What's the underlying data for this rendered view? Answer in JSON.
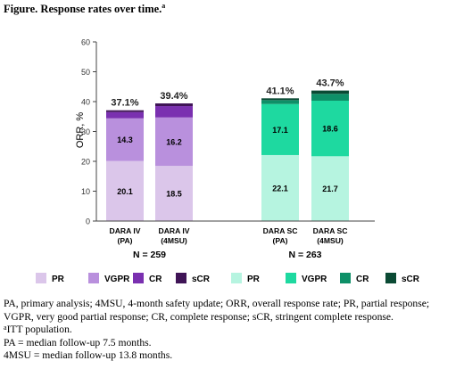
{
  "figure": {
    "title": "Figure. Response rates over time.",
    "title_sup": "a"
  },
  "chart_data": {
    "type": "bar",
    "stacked": true,
    "ylabel": "ORR, %",
    "ylim": [
      0,
      60
    ],
    "yticks": [
      0,
      10,
      20,
      30,
      40,
      50,
      60
    ],
    "grid": false,
    "categories": [
      "DARA IV\n(PA)",
      "DARA IV\n(4MSU)",
      "DARA SC\n(PA)",
      "DARA SC\n(4MSU)"
    ],
    "group_labels": [
      {
        "label": "N = 259",
        "categories": [
          0,
          1
        ]
      },
      {
        "label": "N = 263",
        "categories": [
          2,
          3
        ]
      }
    ],
    "totals": [
      "37.1%",
      "39.4%",
      "41.1%",
      "43.7%"
    ],
    "bars": [
      {
        "segments": [
          {
            "name": "PR",
            "value": 20.1,
            "label": "20.1",
            "color": "#dbc6ea"
          },
          {
            "name": "VGPR",
            "value": 14.3,
            "label": "14.3",
            "color": "#b990dd"
          },
          {
            "name": "CR",
            "value": 2.1,
            "label": "",
            "color": "#7a30b0"
          },
          {
            "name": "sCR",
            "value": 0.6,
            "label": "",
            "color": "#3f1456"
          }
        ]
      },
      {
        "segments": [
          {
            "name": "PR",
            "value": 18.5,
            "label": "18.5",
            "color": "#dbc6ea"
          },
          {
            "name": "VGPR",
            "value": 16.2,
            "label": "16.2",
            "color": "#b990dd"
          },
          {
            "name": "CR",
            "value": 3.8,
            "label": "",
            "color": "#7a30b0"
          },
          {
            "name": "sCR",
            "value": 0.9,
            "label": "",
            "color": "#3f1456"
          }
        ]
      },
      {
        "segments": [
          {
            "name": "PR",
            "value": 22.1,
            "label": "22.1",
            "color": "#b6f4e0"
          },
          {
            "name": "VGPR",
            "value": 17.1,
            "label": "17.1",
            "color": "#1ed9a0"
          },
          {
            "name": "CR",
            "value": 1.3,
            "label": "",
            "color": "#0e9068"
          },
          {
            "name": "sCR",
            "value": 0.6,
            "label": "",
            "color": "#0b4a34"
          }
        ]
      },
      {
        "segments": [
          {
            "name": "PR",
            "value": 21.7,
            "label": "21.7",
            "color": "#b6f4e0"
          },
          {
            "name": "VGPR",
            "value": 18.6,
            "label": "18.6",
            "color": "#1ed9a0"
          },
          {
            "name": "CR",
            "value": 2.3,
            "label": "",
            "color": "#0e9068"
          },
          {
            "name": "sCR",
            "value": 1.1,
            "label": "",
            "color": "#0b4a34"
          }
        ]
      }
    ],
    "legend": [
      {
        "label": "PR",
        "color": "#dbc6ea"
      },
      {
        "label": "VGPR",
        "color": "#b990dd"
      },
      {
        "label": "CR",
        "color": "#7a30b0"
      },
      {
        "label": "sCR",
        "color": "#3f1456"
      },
      {
        "label": "PR",
        "color": "#b6f4e0"
      },
      {
        "label": "VGPR",
        "color": "#1ed9a0"
      },
      {
        "label": "CR",
        "color": "#0e9068"
      },
      {
        "label": "sCR",
        "color": "#0b4a34"
      }
    ],
    "legend_position": "bottom"
  },
  "footnotes": {
    "line1": "PA, primary analysis; 4MSU, 4-month safety update; ORR, overall response rate; PR, partial response;",
    "line2": "VGPR, very good partial response; CR, complete response; sCR, stringent complete response.",
    "itt_sup": "a",
    "itt_text": "ITT population.",
    "pa_followup": "PA = median follow-up 7.5 months.",
    "msu_followup": "4MSU = median follow-up 13.8 months."
  }
}
